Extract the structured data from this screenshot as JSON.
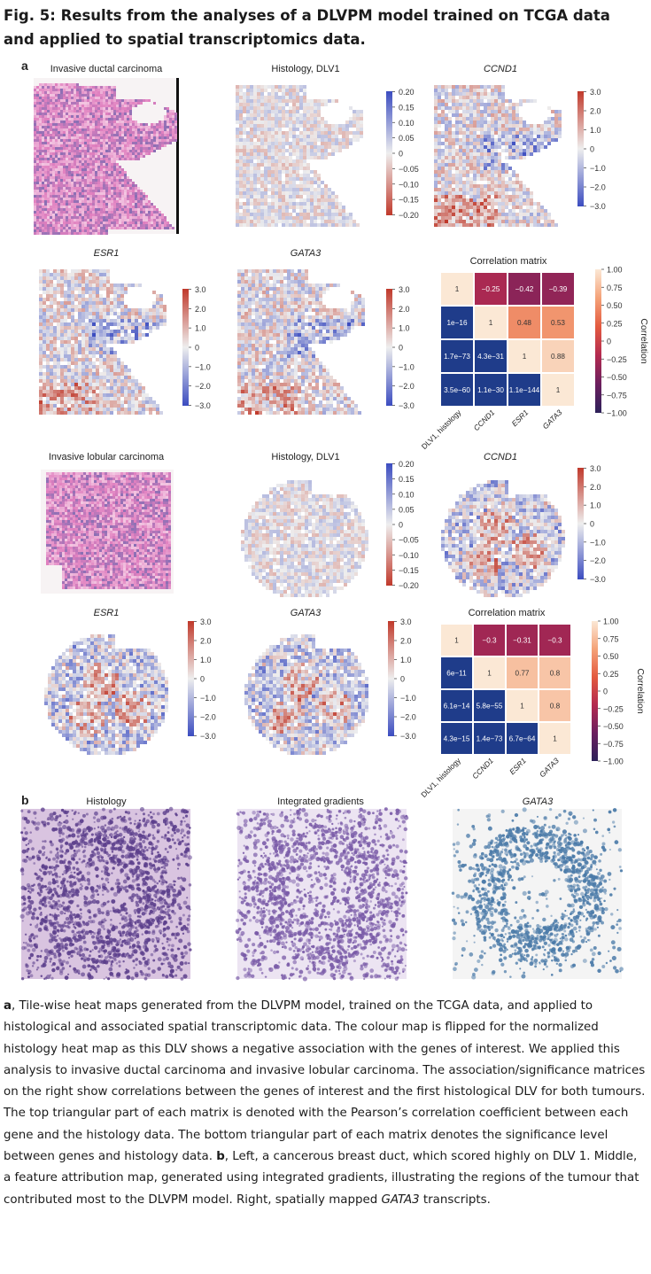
{
  "figure": {
    "title": "Fig. 5: Results from the analyses of a DLVPM model trained on TCGA data and applied to spatial transcriptomics data.",
    "panel_a": "a",
    "panel_b": "b"
  },
  "rows": [
    {
      "tumour_label": "Invasive ductal carcinoma",
      "maps": [
        {
          "label": "Histology, DLV1",
          "italic": false,
          "cmap": "flipped",
          "ticks": [
            "0.20",
            "0.15",
            "0.10",
            "0.05",
            "0",
            "−0.05",
            "−0.10",
            "−0.15",
            "−0.20"
          ]
        },
        {
          "label": "CCND1",
          "italic": true,
          "cmap": "normal",
          "ticks": [
            "3.0",
            "2.0",
            "1.0",
            "0",
            "−1.0",
            "−2.0",
            "−3.0"
          ]
        },
        {
          "label": "ESR1",
          "italic": true,
          "cmap": "normal",
          "ticks": [
            "3.0",
            "2.0",
            "1.0",
            "0",
            "−1.0",
            "−2.0",
            "−3.0"
          ]
        },
        {
          "label": "GATA3",
          "italic": true,
          "cmap": "normal",
          "ticks": [
            "3.0",
            "2.0",
            "1.0",
            "0",
            "−1.0",
            "−2.0",
            "−3.0"
          ]
        }
      ],
      "matrix": {
        "title": "Correlation matrix",
        "cells": [
          [
            "1",
            "−0.25",
            "−0.42",
            "−0.39"
          ],
          [
            "1e−16",
            "1",
            "0.48",
            "0.53"
          ],
          [
            "1.7e−73",
            "4.3e−31",
            "1",
            "0.88"
          ],
          [
            "3.5e−60",
            "1.1e−30",
            "1.1e−144",
            "1"
          ]
        ],
        "values": [
          [
            1,
            -0.25,
            -0.42,
            -0.39
          ],
          [
            0,
            1,
            0.48,
            0.53
          ],
          [
            0,
            0,
            1,
            0.88
          ],
          [
            0,
            0,
            0,
            1
          ]
        ],
        "col_labels": [
          "DLV1, histology",
          "CCND1",
          "ESR1",
          "GATA3"
        ],
        "colorbar_label": "Correlation",
        "colorbar_ticks": [
          "1.00",
          "0.75",
          "0.50",
          "0.25",
          "0",
          "−0.25",
          "−0.50",
          "−0.75",
          "−1.00"
        ]
      }
    },
    {
      "tumour_label": "Invasive lobular carcinoma",
      "maps": [
        {
          "label": "Histology, DLV1",
          "italic": false,
          "cmap": "flipped",
          "ticks": [
            "0.20",
            "0.15",
            "0.10",
            "0.05",
            "0",
            "−0.05",
            "−0.10",
            "−0.15",
            "−0.20"
          ]
        },
        {
          "label": "CCND1",
          "italic": true,
          "cmap": "normal",
          "ticks": [
            "3.0",
            "2.0",
            "1.0",
            "0",
            "−1.0",
            "−2.0",
            "−3.0"
          ]
        },
        {
          "label": "ESR1",
          "italic": true,
          "cmap": "normal",
          "ticks": [
            "3.0",
            "2.0",
            "1.0",
            "0",
            "−1.0",
            "−2.0",
            "−3.0"
          ]
        },
        {
          "label": "GATA3",
          "italic": true,
          "cmap": "normal",
          "ticks": [
            "3.0",
            "2.0",
            "1.0",
            "0",
            "−1.0",
            "−2.0",
            "−3.0"
          ]
        }
      ],
      "matrix": {
        "title": "Correlation matrix",
        "cells": [
          [
            "1",
            "−0.3",
            "−0.31",
            "−0.3"
          ],
          [
            "6e−11",
            "1",
            "0.77",
            "0.8"
          ],
          [
            "6.1e−14",
            "5.8e−55",
            "1",
            "0.8"
          ],
          [
            "4.3e−15",
            "1.4e−73",
            "6.7e−64",
            "1"
          ]
        ],
        "values": [
          [
            1,
            -0.3,
            -0.31,
            -0.3
          ],
          [
            0,
            1,
            0.77,
            0.8
          ],
          [
            0,
            0,
            1,
            0.8
          ],
          [
            0,
            0,
            0,
            1
          ]
        ],
        "col_labels": [
          "DLV1, histology",
          "CCND1",
          "ESR1",
          "GATA3"
        ],
        "colorbar_label": "Correlation",
        "colorbar_ticks": [
          "1.00",
          "0.75",
          "0.50",
          "0.25",
          "0",
          "−0.25",
          "−0.50",
          "−0.75",
          "−1.00"
        ]
      }
    }
  ],
  "panel_b_images": [
    {
      "label": "Histology",
      "italic": false
    },
    {
      "label": "Integrated gradients",
      "italic": false
    },
    {
      "label": "GATA3",
      "italic": true
    }
  ],
  "caption": {
    "a_letter": "a",
    "a_text": ", Tile-wise heat maps generated from the DLVPM model, trained on the TCGA data, and applied to histological and associated spatial transcriptomic data. The colour map is flipped for the normalized histology heat map as this DLV shows a negative association with the genes of interest. We applied this analysis to invasive ductal carcinoma and invasive lobular carcinoma. The association/significance matrices on the right show correlations between the genes of interest and the first histological DLV for both tumours. The top triangular part of each matrix is denoted with the Pearson’s correlation coefficient between each gene and the histology data. The bottom triangular part of each matrix denotes the significance level between genes and histology data. ",
    "b_letter": "b",
    "b_text_1": ", Left, a cancerous breast duct, which scored highly on DLV 1. Middle, a feature attribution map, generated using integrated gradients, illustrating the regions of the tumour that contributed most to the DLVPM model. Right, spatially mapped ",
    "b_gene": "GATA3",
    "b_text_2": " transcripts."
  },
  "colors": {
    "heat_high": "#c0392b",
    "heat_mid": "#eeeeee",
    "heat_low": "#3b4cc0",
    "corr_high": "#fbe8d5",
    "corr_low": "#2c2159",
    "matrix_blue": "#1f3c8a",
    "he_pink": "#e07fbf",
    "he_purple": "#8a6fb4",
    "gata3_blue": "#4a7aa8"
  }
}
